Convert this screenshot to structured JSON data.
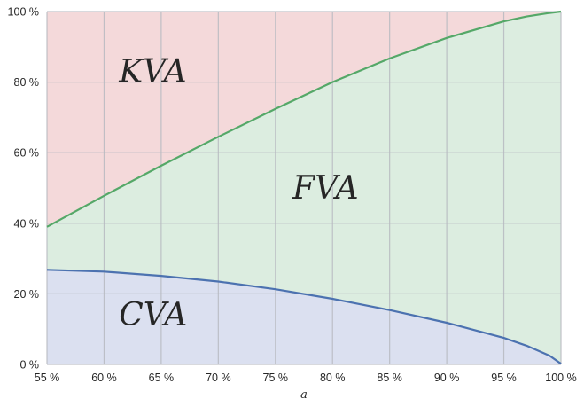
{
  "chart_data": {
    "type": "area",
    "title": "",
    "xlabel": "a",
    "ylabel": "",
    "xlim": [
      55,
      100
    ],
    "ylim": [
      0,
      100
    ],
    "x_ticks": [
      55,
      60,
      65,
      70,
      75,
      80,
      85,
      90,
      95,
      100
    ],
    "x_tick_labels": [
      "55 %",
      "60 %",
      "65 %",
      "70 %",
      "75 %",
      "80 %",
      "85 %",
      "90 %",
      "95 %",
      "100 %"
    ],
    "y_ticks": [
      0,
      20,
      40,
      60,
      80,
      100
    ],
    "y_tick_labels": [
      "0 %",
      "20 %",
      "40 %",
      "60 %",
      "80 %",
      "100 %"
    ],
    "grid": true,
    "x": [
      55,
      60,
      65,
      70,
      75,
      80,
      85,
      90,
      95,
      97,
      99,
      100
    ],
    "series": [
      {
        "name": "CVA",
        "color": "#4c72b0",
        "fill": "#dbe0f0",
        "values": [
          26.8,
          26.3,
          25.1,
          23.5,
          21.3,
          18.6,
          15.4,
          11.8,
          7.5,
          5.3,
          2.5,
          0.2
        ]
      },
      {
        "name": "FVA",
        "color": "#55a868",
        "fill": "#dcede0",
        "cumulative": [
          39.0,
          47.8,
          56.3,
          64.5,
          72.4,
          80.0,
          86.7,
          92.5,
          97.2,
          98.6,
          99.6,
          100.0
        ]
      },
      {
        "name": "KVA",
        "fill": "#f4d9da"
      }
    ],
    "region_labels": [
      {
        "text": "KVA",
        "x": 61.3,
        "y": 80
      },
      {
        "text": "FVA",
        "x": 76.5,
        "y": 47
      },
      {
        "text": "CVA",
        "x": 61.3,
        "y": 11
      }
    ]
  }
}
